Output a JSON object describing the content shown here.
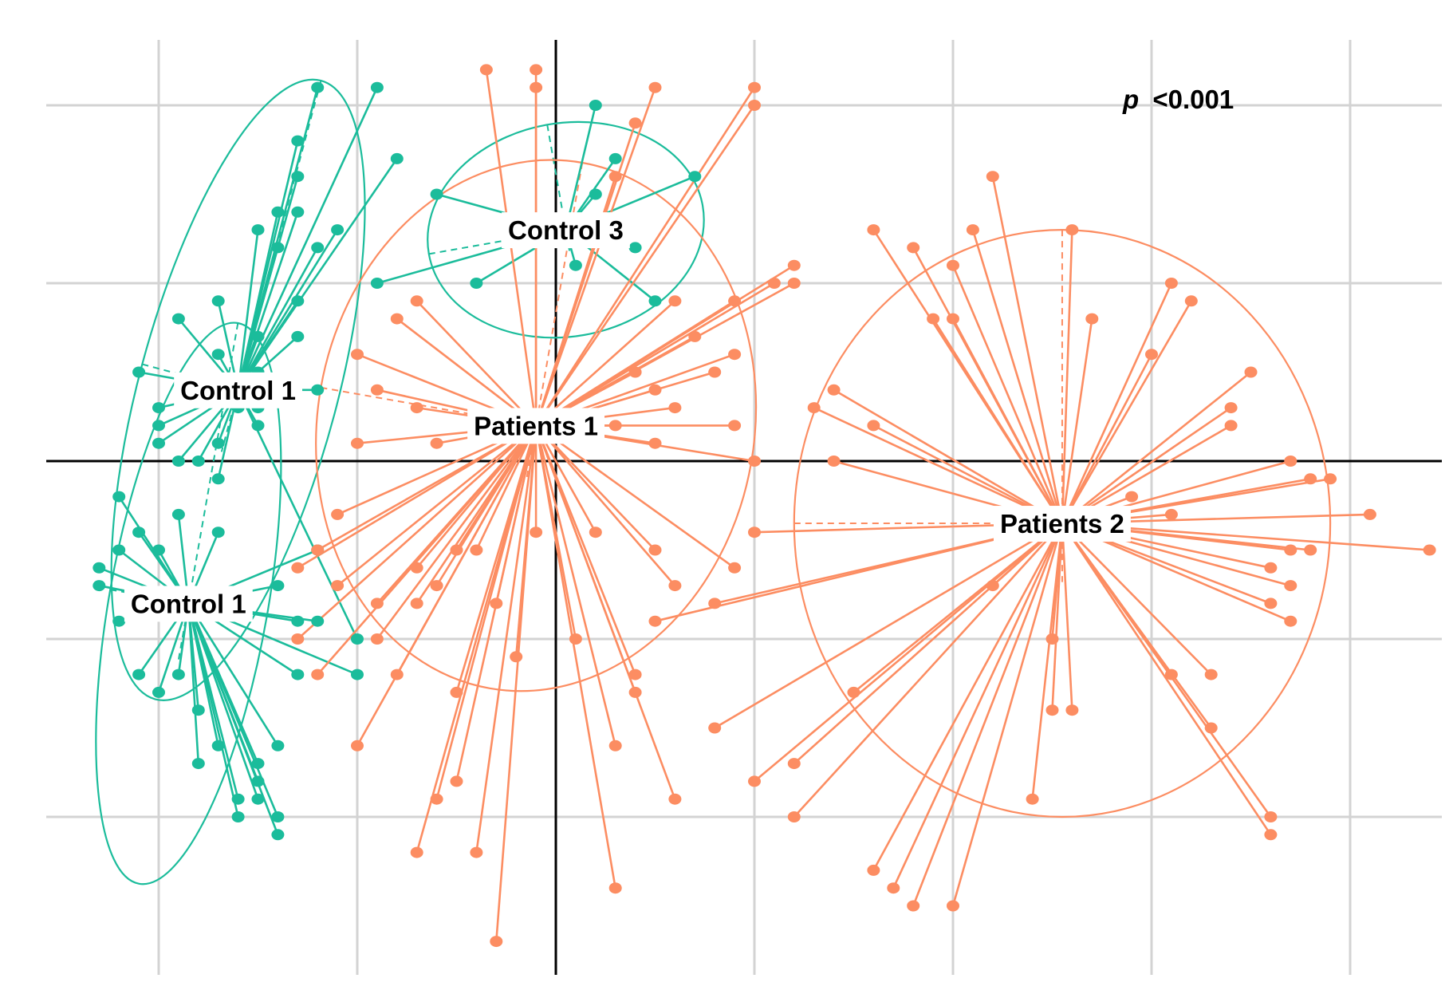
{
  "annotation": {
    "p_symbol": "p",
    "p_value": "<0.001"
  },
  "colors": {
    "control": "#1bbc9b",
    "patients": "#fc8d62",
    "grid": "#d3d3d3",
    "axis": "#000000"
  },
  "chart_data": {
    "type": "scatter",
    "title": "",
    "xlabel": "",
    "ylabel": "",
    "xlim": [
      -2.5,
      4.5
    ],
    "ylim": [
      -2.7,
      2.3
    ],
    "grid": true,
    "zero_lines": true,
    "x_gridlines": [
      -2,
      -1,
      0,
      1,
      2,
      3,
      4
    ],
    "y_gridlines": [
      -2,
      -1,
      0,
      1,
      2
    ],
    "groups": [
      {
        "label": "Control 1",
        "color": "#1bbc9b",
        "centroid": [
          -1.6,
          0.4
        ],
        "ellipse": {
          "rx": 0.5,
          "ry": 1.8,
          "angle": 15
        },
        "points": [
          [
            -1.2,
            2.1
          ],
          [
            -0.9,
            2.1
          ],
          [
            -1.3,
            1.8
          ],
          [
            -1.3,
            1.6
          ],
          [
            -1.3,
            1.4
          ],
          [
            -0.8,
            1.7
          ],
          [
            -1.4,
            1.4
          ],
          [
            -1.5,
            1.3
          ],
          [
            -1.2,
            1.2
          ],
          [
            -1.4,
            1.2
          ],
          [
            -1.1,
            1.3
          ],
          [
            -1.7,
            0.9
          ],
          [
            -1.5,
            0.7
          ],
          [
            -1.3,
            0.7
          ],
          [
            -1.9,
            0.8
          ],
          [
            -2.1,
            0.5
          ],
          [
            -2.0,
            0.3
          ],
          [
            -1.7,
            0.1
          ],
          [
            -1.8,
            0.4
          ],
          [
            -1.2,
            0.4
          ],
          [
            -1.5,
            0.3
          ],
          [
            -2.0,
            0.2
          ],
          [
            -1.8,
            0.0
          ],
          [
            -1.6,
            0.3
          ],
          [
            -1.9,
            0.0
          ],
          [
            -1.3,
            0.9
          ],
          [
            -1.5,
            0.5
          ],
          [
            -1.7,
            0.6
          ],
          [
            -1.5,
            0.2
          ],
          [
            -1.0,
            -1.0
          ],
          [
            -2.0,
            0.1
          ],
          [
            -1.7,
            -0.1
          ]
        ]
      },
      {
        "label": "Control 1",
        "color": "#1bbc9b",
        "centroid": [
          -1.85,
          -0.8
        ],
        "ellipse": {
          "rx": 0.4,
          "ry": 1.6,
          "angle": 10
        },
        "points": [
          [
            -2.3,
            -0.6
          ],
          [
            -2.3,
            -0.7
          ],
          [
            -2.2,
            -0.9
          ],
          [
            -2.1,
            -0.4
          ],
          [
            -2.2,
            -0.2
          ],
          [
            -2.1,
            -1.2
          ],
          [
            -2.0,
            -1.3
          ],
          [
            -1.9,
            -1.2
          ],
          [
            -1.8,
            -1.4
          ],
          [
            -1.8,
            -1.7
          ],
          [
            -1.7,
            -1.6
          ],
          [
            -1.6,
            -1.9
          ],
          [
            -1.5,
            -1.7
          ],
          [
            -1.6,
            -2.0
          ],
          [
            -1.5,
            -1.9
          ],
          [
            -1.4,
            -2.0
          ],
          [
            -1.4,
            -1.6
          ],
          [
            -1.4,
            -2.1
          ],
          [
            -1.3,
            -1.2
          ],
          [
            -1.2,
            -0.9
          ],
          [
            -1.2,
            -0.5
          ],
          [
            -1.3,
            -0.9
          ],
          [
            -1.7,
            -0.4
          ],
          [
            -1.9,
            -0.3
          ],
          [
            -2.0,
            -0.5
          ],
          [
            -2.2,
            -0.5
          ],
          [
            -2.1,
            -0.8
          ],
          [
            -1.0,
            -1.2
          ],
          [
            -1.5,
            -1.8
          ],
          [
            -1.4,
            -0.7
          ]
        ]
      },
      {
        "label": "Control 3",
        "color": "#1bbc9b",
        "centroid": [
          0.05,
          1.3
        ],
        "ellipse": {
          "rx": 0.7,
          "ry": 0.6,
          "angle": -10
        },
        "points": [
          [
            0.2,
            2.0
          ],
          [
            0.3,
            1.7
          ],
          [
            -0.6,
            1.5
          ],
          [
            0.4,
            1.2
          ],
          [
            0.5,
            0.9
          ],
          [
            0.2,
            1.5
          ],
          [
            0.7,
            1.6
          ],
          [
            -0.9,
            1.0
          ],
          [
            -0.4,
            1.0
          ],
          [
            0.1,
            1.1
          ]
        ]
      },
      {
        "label": "Patients 1",
        "color": "#fc8d62",
        "centroid": [
          -0.1,
          0.2
        ],
        "ellipse": {
          "rx": 1.1,
          "ry": 1.5,
          "angle": 10
        },
        "points": [
          [
            -0.35,
            2.2
          ],
          [
            -0.1,
            2.2
          ],
          [
            -0.1,
            2.1
          ],
          [
            0.5,
            2.1
          ],
          [
            1.0,
            2.1
          ],
          [
            1.0,
            2.0
          ],
          [
            0.4,
            1.9
          ],
          [
            0.3,
            1.6
          ],
          [
            1.2,
            1.1
          ],
          [
            1.2,
            1.0
          ],
          [
            1.1,
            1.0
          ],
          [
            0.9,
            0.9
          ],
          [
            0.6,
            0.9
          ],
          [
            0.7,
            0.7
          ],
          [
            0.9,
            0.6
          ],
          [
            0.5,
            0.4
          ],
          [
            0.4,
            0.5
          ],
          [
            0.8,
            0.5
          ],
          [
            0.6,
            0.3
          ],
          [
            0.9,
            0.2
          ],
          [
            1.0,
            0.0
          ],
          [
            0.5,
            0.1
          ],
          [
            0.3,
            0.2
          ],
          [
            -0.7,
            0.9
          ],
          [
            -0.8,
            0.8
          ],
          [
            -1.0,
            0.6
          ],
          [
            -0.9,
            0.4
          ],
          [
            -0.7,
            0.3
          ],
          [
            -0.6,
            0.1
          ],
          [
            -1.0,
            0.1
          ],
          [
            -1.1,
            -0.3
          ],
          [
            -1.2,
            -0.5
          ],
          [
            -1.1,
            -0.7
          ],
          [
            -0.9,
            -0.8
          ],
          [
            -0.7,
            -0.6
          ],
          [
            -0.5,
            -0.5
          ],
          [
            -0.3,
            -0.8
          ],
          [
            -0.1,
            -0.4
          ],
          [
            0.2,
            -0.4
          ],
          [
            0.5,
            -0.5
          ],
          [
            0.6,
            -0.7
          ],
          [
            0.9,
            -0.6
          ],
          [
            0.1,
            -1.0
          ],
          [
            0.4,
            -1.2
          ],
          [
            0.4,
            -1.3
          ],
          [
            0.3,
            -1.6
          ],
          [
            0.6,
            -1.9
          ],
          [
            -0.5,
            -1.8
          ],
          [
            -0.6,
            -1.9
          ],
          [
            -0.7,
            -2.2
          ],
          [
            -0.3,
            -2.7
          ],
          [
            -0.4,
            -2.2
          ],
          [
            0.3,
            -2.4
          ],
          [
            -1.0,
            -1.6
          ],
          [
            -1.3,
            -1.0
          ],
          [
            -1.2,
            -1.2
          ],
          [
            -0.8,
            -1.2
          ],
          [
            -0.5,
            -1.3
          ],
          [
            -0.2,
            -1.1
          ],
          [
            -0.9,
            -1.0
          ],
          [
            -0.7,
            -0.8
          ],
          [
            -0.6,
            -0.7
          ],
          [
            -1.3,
            -0.6
          ],
          [
            -0.4,
            -0.5
          ]
        ]
      },
      {
        "label": "Patients 2",
        "color": "#fc8d62",
        "centroid": [
          2.55,
          -0.35
        ],
        "ellipse": {
          "rx": 1.35,
          "ry": 1.65,
          "angle": 0
        },
        "points": [
          [
            2.2,
            1.6
          ],
          [
            1.6,
            1.3
          ],
          [
            1.8,
            1.2
          ],
          [
            2.0,
            1.1
          ],
          [
            2.1,
            1.3
          ],
          [
            2.6,
            1.3
          ],
          [
            1.9,
            0.8
          ],
          [
            2.0,
            0.8
          ],
          [
            2.7,
            0.8
          ],
          [
            3.2,
            0.9
          ],
          [
            3.1,
            1.0
          ],
          [
            3.0,
            0.6
          ],
          [
            3.5,
            0.5
          ],
          [
            3.4,
            0.3
          ],
          [
            3.4,
            0.2
          ],
          [
            3.7,
            0.0
          ],
          [
            3.9,
            -0.1
          ],
          [
            3.8,
            -0.1
          ],
          [
            4.1,
            -0.3
          ],
          [
            4.4,
            -0.5
          ],
          [
            3.8,
            -0.5
          ],
          [
            3.7,
            -0.5
          ],
          [
            3.6,
            -0.6
          ],
          [
            3.7,
            -0.7
          ],
          [
            3.6,
            -0.8
          ],
          [
            3.7,
            -0.9
          ],
          [
            3.1,
            -0.3
          ],
          [
            2.9,
            -0.2
          ],
          [
            2.7,
            -0.4
          ],
          [
            2.5,
            -0.4
          ],
          [
            2.2,
            -0.7
          ],
          [
            2.5,
            -1.0
          ],
          [
            3.1,
            -1.2
          ],
          [
            3.3,
            -1.2
          ],
          [
            3.3,
            -1.5
          ],
          [
            3.6,
            -2.0
          ],
          [
            3.6,
            -2.1
          ],
          [
            2.6,
            -1.4
          ],
          [
            2.5,
            -1.4
          ],
          [
            2.4,
            -1.9
          ],
          [
            1.5,
            -1.3
          ],
          [
            1.2,
            -1.7
          ],
          [
            1.2,
            -2.0
          ],
          [
            1.0,
            -1.8
          ],
          [
            0.8,
            -1.5
          ],
          [
            1.6,
            -2.3
          ],
          [
            1.7,
            -2.4
          ],
          [
            1.8,
            -2.5
          ],
          [
            2.0,
            -2.5
          ],
          [
            0.5,
            -0.9
          ],
          [
            1.0,
            -0.4
          ],
          [
            0.8,
            -0.8
          ],
          [
            2.3,
            -0.3
          ],
          [
            2.6,
            -0.3
          ],
          [
            1.4,
            0.4
          ],
          [
            1.3,
            0.3
          ],
          [
            1.4,
            0.0
          ],
          [
            1.6,
            0.2
          ]
        ]
      }
    ]
  }
}
